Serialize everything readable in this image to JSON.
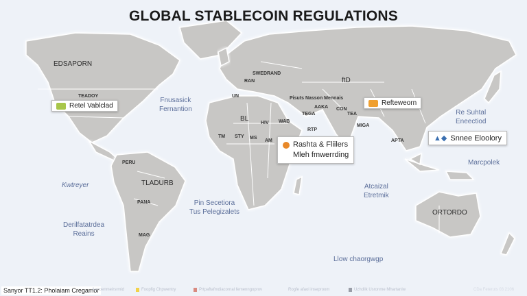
{
  "title": "GLOBAL STABLECOIN REGULATIONS",
  "regions": {
    "north_america": "EDSAPORN",
    "usa": "TEADOY",
    "south_america": "TLADURB",
    "sa_small_1": "PANA",
    "sa_small_2": "MAG",
    "sa_small_3": "PERU",
    "africa": "BL",
    "af_1": "HIV",
    "af_2": "WAB",
    "af_3": "STY",
    "af_4": "MS",
    "af_5": "AM",
    "af_6": "TM",
    "europe_1": "SWEDRAND",
    "europe_2": "UN",
    "europe_3": "RAN",
    "russia": "ftD",
    "turkey": "Pisuts Nasson Mennais",
    "middle_1": "AAKA",
    "middle_2": "TEGA",
    "middle_3": "RTP",
    "asia_1": "CON",
    "asia_2": "TEA",
    "india": "MIGA",
    "sea": "APTA",
    "australia": "ORTORDO"
  },
  "oceans": {
    "atlantic_north": [
      "Fnusasick",
      "Fernantion"
    ],
    "pacific_east": "Kwtreyer",
    "pacific_south": [
      "Derilfatatrdea",
      "Reains"
    ],
    "atlantic_south": [
      "Pin Secetiora",
      "Tus Pelegizalets"
    ],
    "pacific_west": [
      "Re Suhtal",
      "Eneectiod"
    ],
    "pacific_sw": "Marcpolek",
    "indian": [
      "Atcaizal",
      "Etretmik"
    ],
    "southern": "Llow chaorgwgp"
  },
  "callouts": {
    "americas": {
      "label": "Retel Vablclad",
      "icon": "flag-icon",
      "color": "#a8c64a"
    },
    "china": {
      "label": "Refteweorn",
      "icon": "flag-icon",
      "color": "#f0a030"
    },
    "africa": {
      "line1": "Rashta & Fliilers",
      "line2": "Mleh fmwerrding",
      "icon": "coin-icon",
      "color": "#e8892a"
    },
    "asia_pacific": {
      "label": "Snnee Eloolory",
      "icon": "globe-icon",
      "color": "#3a6fb0"
    }
  },
  "footer": {
    "source": "Sanyor TT1.2: Pholaiam Cregamor",
    "legend": [
      {
        "label": "Aenoenmeirsrmid",
        "color": ""
      },
      {
        "label": "Foopfig Chpwentry",
        "color": "#f2d24a"
      },
      {
        "label": "Prtpaftafmdiacornal femenngoprov",
        "color": "#d98a80"
      },
      {
        "label": "Rogfe afaol inseproom",
        "color": ""
      },
      {
        "label": "Uzhdilk Usronme Mhartaniw",
        "color": "#9a9ea8"
      }
    ],
    "note": "CDa Feteruts 03 2106"
  }
}
